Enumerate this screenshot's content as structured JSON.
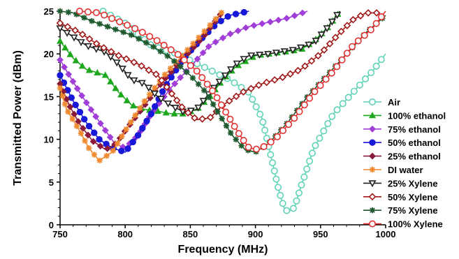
{
  "chart_data": {
    "type": "line",
    "xlabel": "Frequency (MHz)",
    "ylabel": "Transmitted Power (dBm)",
    "xlim": [
      750,
      1000
    ],
    "ylim": [
      0,
      25
    ],
    "xticks": [
      "750",
      "800",
      "850",
      "900",
      "950",
      "1000"
    ],
    "yticks": [
      "0",
      "5",
      "10",
      "15",
      "20",
      "25"
    ],
    "legend_position": "right",
    "grid": false,
    "series": [
      {
        "name": "Air",
        "color": "#5fd3b8",
        "marker": "circle-open",
        "points": [
          [
            783,
            25
          ],
          [
            800,
            23.6
          ],
          [
            820,
            21
          ],
          [
            840,
            20
          ],
          [
            860,
            18.5
          ],
          [
            880,
            17
          ],
          [
            895,
            15.5
          ],
          [
            905,
            12.5
          ],
          [
            912,
            8
          ],
          [
            918,
            4
          ],
          [
            922,
            2
          ],
          [
            925,
            1.5
          ],
          [
            930,
            2
          ],
          [
            935,
            4.5
          ],
          [
            945,
            9
          ],
          [
            960,
            13
          ],
          [
            975,
            15.5
          ],
          [
            990,
            18
          ],
          [
            1000,
            20
          ]
        ]
      },
      {
        "name": "100% ethanol",
        "color": "#1fa81f",
        "marker": "triangle",
        "points": [
          [
            750,
            21.5
          ],
          [
            760,
            19.5
          ],
          [
            770,
            18.2
          ],
          [
            785,
            17.5
          ],
          [
            795,
            15.5
          ],
          [
            805,
            14
          ],
          [
            815,
            13.5
          ],
          [
            825,
            13.3
          ],
          [
            835,
            13
          ],
          [
            845,
            13
          ],
          [
            855,
            13.5
          ],
          [
            865,
            15
          ],
          [
            875,
            17
          ],
          [
            885,
            18.5
          ],
          [
            900,
            19.8
          ],
          [
            920,
            20.2
          ],
          [
            935,
            20.5
          ],
          [
            945,
            21.5
          ],
          [
            955,
            23
          ],
          [
            965,
            25
          ]
        ]
      },
      {
        "name": "75% ethanol",
        "color": "#a13ed8",
        "marker": "diamond",
        "points": [
          [
            750,
            19.3
          ],
          [
            755,
            18
          ],
          [
            765,
            15.5
          ],
          [
            775,
            13.2
          ],
          [
            785,
            11
          ],
          [
            792,
            9.5
          ],
          [
            800,
            9
          ],
          [
            810,
            10.5
          ],
          [
            820,
            13
          ],
          [
            835,
            16
          ],
          [
            850,
            18.5
          ],
          [
            865,
            21
          ],
          [
            880,
            22.3
          ],
          [
            895,
            23.2
          ],
          [
            910,
            23.7
          ],
          [
            925,
            24.2
          ],
          [
            940,
            25
          ]
        ]
      },
      {
        "name": "50% ethanol",
        "color": "#1818d8",
        "marker": "circle",
        "points": [
          [
            750,
            17.5
          ],
          [
            760,
            14.5
          ],
          [
            770,
            12
          ],
          [
            780,
            10
          ],
          [
            790,
            9
          ],
          [
            800,
            8.5
          ],
          [
            810,
            10.5
          ],
          [
            820,
            13
          ],
          [
            830,
            16
          ],
          [
            845,
            19.5
          ],
          [
            860,
            22
          ],
          [
            870,
            23.5
          ],
          [
            880,
            24.5
          ],
          [
            895,
            25
          ]
        ]
      },
      {
        "name": "25% ethanol",
        "color": "#8a1a3a",
        "marker": "diamond",
        "points": [
          [
            750,
            16.5
          ],
          [
            757,
            14
          ],
          [
            765,
            11.8
          ],
          [
            775,
            9.8
          ],
          [
            785,
            8.8
          ],
          [
            793,
            9.5
          ],
          [
            800,
            11
          ],
          [
            815,
            14
          ],
          [
            830,
            17
          ],
          [
            845,
            19.5
          ],
          [
            860,
            22
          ],
          [
            870,
            24
          ],
          [
            875,
            25
          ]
        ]
      },
      {
        "name": "DI water",
        "color": "#f08a30",
        "marker": "star",
        "points": [
          [
            750,
            16
          ],
          [
            755,
            13.5
          ],
          [
            765,
            11
          ],
          [
            772,
            9
          ],
          [
            780,
            7.5
          ],
          [
            790,
            8.5
          ],
          [
            800,
            11
          ],
          [
            815,
            14.5
          ],
          [
            830,
            17.5
          ],
          [
            845,
            20
          ],
          [
            860,
            22.5
          ],
          [
            875,
            25
          ]
        ]
      },
      {
        "name": "25% Xylene",
        "color": "#222222",
        "marker": "triangle-down-open",
        "points": [
          [
            750,
            23
          ],
          [
            760,
            22
          ],
          [
            770,
            21
          ],
          [
            785,
            20.2
          ],
          [
            795,
            18.8
          ],
          [
            805,
            17
          ],
          [
            815,
            16.5
          ],
          [
            825,
            15
          ],
          [
            835,
            14
          ],
          [
            845,
            13.2
          ],
          [
            855,
            13.5
          ],
          [
            865,
            15.5
          ],
          [
            875,
            17.2
          ],
          [
            885,
            18.8
          ],
          [
            895,
            19.8
          ],
          [
            910,
            20
          ],
          [
            930,
            20.5
          ],
          [
            945,
            21.3
          ],
          [
            955,
            23
          ],
          [
            965,
            25
          ]
        ]
      },
      {
        "name": "50% Xylene",
        "color": "#a01818",
        "marker": "diamond-open",
        "points": [
          [
            750,
            23.6
          ],
          [
            765,
            22.5
          ],
          [
            780,
            21
          ],
          [
            795,
            19.8
          ],
          [
            810,
            18.8
          ],
          [
            825,
            17.5
          ],
          [
            835,
            15.5
          ],
          [
            845,
            13.5
          ],
          [
            855,
            12.3
          ],
          [
            865,
            12.5
          ],
          [
            875,
            14
          ],
          [
            890,
            15.5
          ],
          [
            905,
            16.5
          ],
          [
            920,
            17.2
          ],
          [
            935,
            18.2
          ],
          [
            950,
            20
          ],
          [
            965,
            22.5
          ],
          [
            975,
            24
          ],
          [
            985,
            24.8
          ],
          [
            995,
            24.8
          ]
        ]
      },
      {
        "name": "75% Xylene",
        "color": "#1f5a2f",
        "marker": "star",
        "points": [
          [
            750,
            25
          ],
          [
            760,
            24.8
          ],
          [
            775,
            23.8
          ],
          [
            790,
            23
          ],
          [
            805,
            22.2
          ],
          [
            820,
            21
          ],
          [
            835,
            19.5
          ],
          [
            850,
            17.5
          ],
          [
            862,
            15.5
          ],
          [
            872,
            13
          ],
          [
            882,
            10.5
          ],
          [
            892,
            8.8
          ],
          [
            900,
            8.5
          ],
          [
            910,
            9.5
          ],
          [
            925,
            12
          ],
          [
            940,
            15
          ],
          [
            955,
            17.5
          ],
          [
            970,
            20
          ],
          [
            985,
            22.5
          ],
          [
            1000,
            24.5
          ]
        ]
      },
      {
        "name": "100% Xylene",
        "color": "#e03030",
        "marker": "circle-open",
        "points": [
          [
            765,
            25
          ],
          [
            780,
            24.8
          ],
          [
            795,
            23.8
          ],
          [
            810,
            22.8
          ],
          [
            825,
            21.5
          ],
          [
            840,
            20
          ],
          [
            855,
            18
          ],
          [
            868,
            15.5
          ],
          [
            878,
            13
          ],
          [
            888,
            10.5
          ],
          [
            895,
            9
          ],
          [
            903,
            8.8
          ],
          [
            915,
            10
          ],
          [
            930,
            12.5
          ],
          [
            945,
            15.5
          ],
          [
            960,
            18
          ],
          [
            975,
            21
          ],
          [
            990,
            23
          ],
          [
            1000,
            25
          ]
        ]
      }
    ]
  }
}
